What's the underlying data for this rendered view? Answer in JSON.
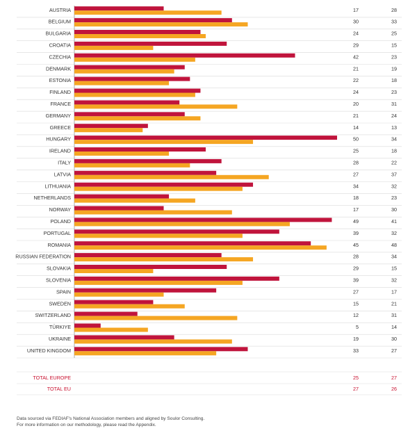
{
  "chart_data": {
    "type": "bar",
    "orientation": "horizontal",
    "colors": {
      "series_a": "#c0143c",
      "series_b": "#f5a623",
      "total_text": "#c8102e",
      "grid": "#d9d9d9"
    },
    "xlim": [
      0,
      50
    ],
    "categories": [
      "AUSTRIA",
      "BELGIUM",
      "BULGARIA",
      "CROATIA",
      "CZECHIA",
      "DENMARK",
      "ESTONIA",
      "FINLAND",
      "FRANCE",
      "GERMANY",
      "GREECE",
      "HUNGARY",
      "IRELAND",
      "ITALY",
      "LATVIA",
      "LITHUANIA",
      "NETHERLANDS",
      "NORWAY",
      "POLAND",
      "PORTUGAL",
      "ROMANIA",
      "RUSSIAN FEDERATION",
      "SLOVAKIA",
      "SLOVENIA",
      "SPAIN",
      "SWEDEN",
      "SWITZERLAND",
      "TÜRKIYE",
      "UKRAINE",
      "UNITED KINGDOM"
    ],
    "series": [
      {
        "values": [
          17,
          30,
          24,
          29,
          42,
          21,
          22,
          24,
          20,
          21,
          14,
          50,
          25,
          28,
          27,
          34,
          18,
          17,
          49,
          39,
          45,
          28,
          29,
          39,
          27,
          15,
          12,
          5,
          19,
          33
        ]
      },
      {
        "values": [
          28,
          33,
          25,
          15,
          23,
          19,
          18,
          23,
          31,
          24,
          13,
          34,
          18,
          22,
          37,
          32,
          23,
          30,
          41,
          32,
          48,
          34,
          15,
          32,
          17,
          21,
          31,
          14,
          30,
          27
        ]
      }
    ],
    "totals": [
      {
        "label": "TOTAL EUROPE",
        "values": [
          25,
          27
        ]
      },
      {
        "label": "TOTAL EU",
        "values": [
          27,
          26
        ]
      }
    ]
  },
  "footer": {
    "line1": "Data sourced via FEDIAF's National Association members and aligned by Soulor Consulting.",
    "line2": "For more information on our methodology, please read the Appendix."
  }
}
